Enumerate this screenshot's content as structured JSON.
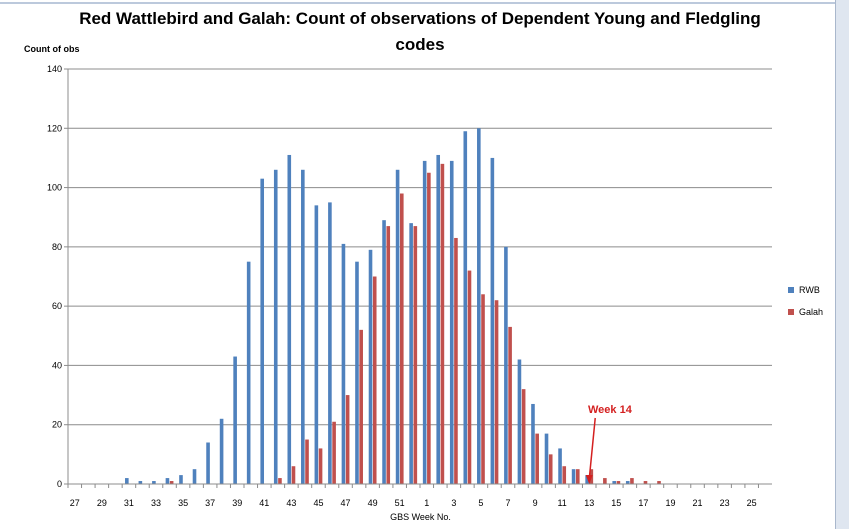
{
  "chart_data": {
    "type": "bar",
    "title": "Red Wattlebird and Galah: Count of observations of Dependent Young and Fledgling codes",
    "ylabel": "Count of obs",
    "xlabel": "GBS Week No.",
    "ylim": [
      0,
      140
    ],
    "yticks": [
      0,
      20,
      40,
      60,
      80,
      100,
      120,
      140
    ],
    "grid": true,
    "legend_position": "right",
    "categories": [
      "27",
      "28",
      "29",
      "30",
      "31",
      "32",
      "33",
      "34",
      "35",
      "36",
      "37",
      "38",
      "39",
      "40",
      "41",
      "42",
      "43",
      "44",
      "45",
      "46",
      "47",
      "48",
      "49",
      "50",
      "51",
      "52",
      "1",
      "2",
      "3",
      "4",
      "5",
      "6",
      "7",
      "8",
      "9",
      "10",
      "11",
      "12",
      "13",
      "14",
      "15",
      "16",
      "17",
      "18",
      "19",
      "20",
      "21",
      "22",
      "23",
      "24",
      "25",
      "26"
    ],
    "series": [
      {
        "name": "RWB",
        "color": "#4f81bd",
        "values": [
          0,
          0,
          0,
          0,
          2,
          1,
          1,
          2,
          3,
          5,
          14,
          22,
          43,
          75,
          103,
          106,
          111,
          106,
          94,
          95,
          81,
          75,
          79,
          89,
          106,
          88,
          109,
          111,
          109,
          119,
          120,
          110,
          80,
          42,
          27,
          17,
          12,
          5,
          3,
          0,
          1,
          1,
          0,
          0,
          0,
          0,
          0,
          0,
          0,
          0,
          0,
          0
        ]
      },
      {
        "name": "Galah",
        "color": "#c0504d",
        "values": [
          0,
          0,
          0,
          0,
          0,
          0,
          0,
          1,
          0,
          0,
          0,
          0,
          0,
          0,
          0,
          2,
          6,
          15,
          12,
          21,
          30,
          52,
          70,
          87,
          98,
          87,
          105,
          108,
          83,
          72,
          64,
          62,
          53,
          32,
          17,
          10,
          6,
          5,
          5,
          2,
          1,
          2,
          1,
          1,
          0,
          0,
          0,
          0,
          0,
          0,
          0,
          0
        ]
      }
    ],
    "annotation": {
      "text": "Week 14",
      "category": "13",
      "color": "#d42020"
    }
  }
}
